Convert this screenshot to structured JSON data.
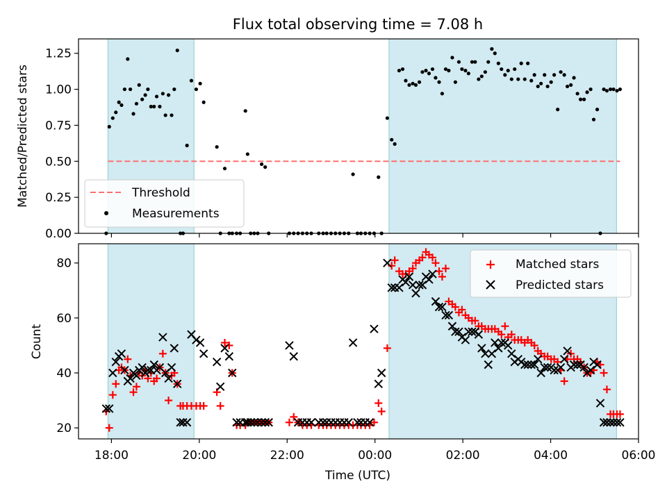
{
  "colors": {
    "shade": "#add8e6",
    "threshold": "#ff6e6e",
    "matched": "#ff0000",
    "predicted": "#000000",
    "measurement": "#000000"
  },
  "chart_data": [
    {
      "type": "scatter",
      "title": "Flux total observing time = 7.08 h",
      "xlabel": "",
      "ylabel": "Matched/Predicted stars",
      "xlim": [
        17.25,
        30.0
      ],
      "ylim": [
        0.0,
        1.35
      ],
      "yticks": [
        0.0,
        0.25,
        0.5,
        0.75,
        1.0,
        1.25
      ],
      "ytick_labels": [
        "0.00",
        "0.25",
        "0.50",
        "0.75",
        "1.00",
        "1.25"
      ],
      "shaded_intervals": [
        [
          17.92,
          19.88
        ],
        [
          24.32,
          29.5
        ]
      ],
      "threshold": {
        "name": "Threshold",
        "y": 0.5,
        "x_range": [
          17.92,
          29.58
        ]
      },
      "legend": {
        "position": "lower-left",
        "entries": [
          "Threshold",
          "Measurements"
        ]
      },
      "series": [
        {
          "name": "Measurements",
          "x": [
            17.88,
            17.95,
            18.03,
            18.1,
            18.17,
            18.23,
            18.3,
            18.37,
            18.43,
            18.5,
            18.57,
            18.63,
            18.7,
            18.77,
            18.83,
            18.9,
            18.97,
            19.03,
            19.1,
            19.17,
            19.23,
            19.3,
            19.37,
            19.43,
            19.5,
            19.57,
            19.63,
            19.72,
            19.82,
            19.93,
            20.02,
            20.1,
            20.4,
            20.48,
            20.58,
            20.68,
            20.75,
            20.85,
            20.93,
            21.05,
            21.1,
            21.17,
            21.25,
            21.33,
            21.42,
            21.5,
            21.58,
            22.05,
            22.15,
            22.25,
            22.35,
            22.45,
            22.55,
            22.72,
            22.82,
            22.9,
            23.0,
            23.1,
            23.2,
            23.3,
            23.4,
            23.5,
            23.6,
            23.68,
            23.78,
            23.88,
            23.98,
            24.08,
            24.15,
            24.28,
            24.38,
            24.45,
            24.55,
            24.63,
            24.7,
            24.78,
            24.86,
            24.93,
            25.01,
            25.08,
            25.16,
            25.23,
            25.31,
            25.38,
            25.46,
            25.53,
            25.61,
            25.68,
            25.76,
            25.83,
            25.91,
            25.98,
            26.06,
            26.13,
            26.21,
            26.28,
            26.36,
            26.43,
            26.51,
            26.58,
            26.66,
            26.73,
            26.81,
            26.88,
            26.96,
            27.03,
            27.11,
            27.18,
            27.26,
            27.33,
            27.41,
            27.48,
            27.56,
            27.63,
            27.71,
            27.78,
            27.86,
            27.93,
            28.01,
            28.08,
            28.16,
            28.23,
            28.31,
            28.38,
            28.46,
            28.53,
            28.61,
            28.68,
            28.76,
            28.83,
            28.91,
            28.98,
            29.06,
            29.13,
            29.21,
            29.28,
            29.36,
            29.43,
            29.51,
            29.58
          ],
          "y": [
            0.0,
            0.74,
            0.8,
            0.84,
            0.91,
            0.89,
            1.0,
            1.21,
            1.0,
            0.83,
            0.9,
            1.03,
            0.93,
            0.96,
            1.0,
            0.88,
            0.88,
            0.95,
            0.88,
            0.97,
            0.82,
            0.96,
            0.82,
            1.0,
            1.27,
            0.0,
            0.0,
            0.61,
            1.06,
            1.0,
            1.04,
            0.91,
            0.6,
            0.0,
            0.45,
            0.0,
            0.0,
            0.0,
            0.0,
            0.85,
            0.55,
            0.0,
            0.0,
            0.0,
            0.48,
            0.46,
            0.0,
            0.0,
            0.0,
            0.0,
            0.0,
            0.0,
            0.0,
            0.0,
            0.0,
            0.0,
            0.0,
            0.0,
            0.0,
            0.0,
            0.0,
            0.41,
            0.0,
            0.0,
            0.0,
            0.0,
            0.0,
            0.39,
            0.0,
            0.8,
            0.65,
            0.62,
            1.13,
            1.14,
            1.06,
            1.03,
            1.04,
            1.03,
            1.05,
            1.12,
            1.13,
            1.11,
            1.14,
            1.08,
            1.05,
            0.97,
            1.14,
            1.13,
            1.22,
            1.05,
            1.19,
            1.14,
            1.13,
            1.11,
            1.19,
            1.19,
            1.07,
            1.09,
            1.12,
            1.19,
            1.28,
            1.25,
            1.18,
            1.14,
            1.1,
            1.13,
            1.07,
            1.14,
            1.07,
            1.18,
            1.07,
            1.18,
            1.06,
            1.1,
            1.02,
            1.04,
            1.1,
            1.02,
            1.05,
            1.1,
            0.86,
            1.12,
            1.1,
            1.02,
            1.03,
            1.08,
            0.97,
            0.93,
            0.93,
            0.98,
            1.0,
            0.79,
            0.86,
            0.0,
            1.0,
            0.99,
            1.0,
            1.0,
            0.99,
            1.0
          ],
          "count_note": "Values estimated from the figure"
        }
      ]
    },
    {
      "type": "scatter",
      "title": "",
      "xlabel": "Time (UTC)",
      "ylabel": "Count",
      "xlim": [
        17.25,
        30.0
      ],
      "ylim": [
        16,
        87
      ],
      "yticks": [
        20,
        40,
        60,
        80
      ],
      "ytick_labels": [
        "20",
        "40",
        "60",
        "80"
      ],
      "xticks": [
        18,
        20,
        22,
        24,
        26,
        28,
        30
      ],
      "xtick_labels": [
        "18:00",
        "20:00",
        "22:00",
        "00:00",
        "02:00",
        "04:00",
        "06:00"
      ],
      "shaded_intervals": [
        [
          17.92,
          19.88
        ],
        [
          24.32,
          29.5
        ]
      ],
      "legend": {
        "position": "top-right",
        "entries": [
          "Matched stars",
          "Predicted stars"
        ]
      },
      "series": [
        {
          "name": "Matched stars",
          "marker": "plus",
          "x": [
            17.88,
            17.95,
            18.03,
            18.1,
            18.17,
            18.23,
            18.3,
            18.37,
            18.43,
            18.5,
            18.57,
            18.63,
            18.7,
            18.77,
            18.83,
            18.9,
            18.97,
            19.03,
            19.1,
            19.17,
            19.23,
            19.3,
            19.37,
            19.43,
            19.5,
            19.57,
            19.63,
            19.72,
            19.82,
            19.93,
            20.02,
            20.1,
            20.4,
            20.48,
            20.58,
            20.68,
            20.75,
            20.85,
            20.93,
            21.05,
            21.1,
            21.17,
            21.25,
            21.33,
            21.42,
            21.5,
            21.58,
            22.05,
            22.15,
            22.25,
            22.35,
            22.45,
            22.55,
            22.72,
            22.82,
            22.9,
            23.0,
            23.1,
            23.2,
            23.3,
            23.4,
            23.5,
            23.6,
            23.68,
            23.78,
            23.88,
            23.98,
            24.08,
            24.15,
            24.28,
            24.38,
            24.45,
            24.55,
            24.63,
            24.7,
            24.78,
            24.86,
            24.93,
            25.01,
            25.08,
            25.16,
            25.23,
            25.31,
            25.38,
            25.46,
            25.53,
            25.61,
            25.68,
            25.76,
            25.83,
            25.91,
            25.98,
            26.06,
            26.13,
            26.21,
            26.28,
            26.36,
            26.43,
            26.51,
            26.58,
            26.66,
            26.73,
            26.81,
            26.88,
            26.96,
            27.03,
            27.11,
            27.18,
            27.26,
            27.33,
            27.41,
            27.48,
            27.56,
            27.63,
            27.71,
            27.78,
            27.86,
            27.93,
            28.01,
            28.08,
            28.16,
            28.23,
            28.31,
            28.38,
            28.46,
            28.53,
            28.61,
            28.68,
            28.76,
            28.83,
            28.91,
            28.98,
            29.06,
            29.13,
            29.21,
            29.28,
            29.36,
            29.43,
            29.51,
            29.58
          ],
          "y": [
            26,
            20,
            32,
            36,
            41,
            42,
            41,
            45,
            39,
            33,
            35,
            40,
            39,
            41,
            38,
            40,
            37,
            38,
            42,
            47,
            40,
            30,
            39,
            40,
            36,
            28,
            28,
            28,
            28,
            28,
            28,
            28,
            33,
            28,
            51,
            50,
            40,
            21,
            21,
            21,
            22,
            22,
            22,
            22,
            22,
            22,
            22,
            22,
            24,
            22,
            21,
            21,
            21,
            21,
            21,
            21,
            21,
            21,
            21,
            21,
            21,
            21,
            21,
            21,
            21,
            21,
            22,
            29,
            26,
            49,
            79,
            81,
            77,
            76,
            76,
            77,
            78,
            80,
            81,
            82,
            84,
            83,
            82,
            80,
            77,
            75,
            78,
            66,
            65,
            64,
            62,
            63,
            61,
            60,
            59,
            59,
            57,
            57,
            56,
            56,
            56,
            56,
            55,
            54,
            57,
            53,
            54,
            52,
            52,
            52,
            51,
            52,
            51,
            50,
            48,
            47,
            46,
            46,
            45,
            45,
            44,
            41,
            37,
            45,
            47,
            45,
            45,
            44,
            42,
            40,
            40,
            41,
            44,
            43,
            40,
            34,
            25,
            25,
            25,
            25
          ]
        },
        {
          "name": "Predicted stars",
          "marker": "x",
          "x": [
            17.88,
            17.95,
            18.03,
            18.1,
            18.17,
            18.23,
            18.3,
            18.37,
            18.43,
            18.5,
            18.57,
            18.63,
            18.7,
            18.77,
            18.83,
            18.9,
            18.97,
            19.03,
            19.1,
            19.17,
            19.23,
            19.3,
            19.37,
            19.43,
            19.5,
            19.57,
            19.63,
            19.72,
            19.82,
            19.93,
            20.02,
            20.1,
            20.4,
            20.48,
            20.58,
            20.68,
            20.75,
            20.85,
            20.93,
            21.05,
            21.1,
            21.17,
            21.25,
            21.33,
            21.42,
            21.5,
            21.58,
            22.05,
            22.15,
            22.25,
            22.35,
            22.45,
            22.55,
            22.72,
            22.82,
            22.9,
            23.0,
            23.1,
            23.2,
            23.3,
            23.4,
            23.5,
            23.6,
            23.68,
            23.78,
            23.88,
            23.98,
            24.08,
            24.15,
            24.28,
            24.38,
            24.45,
            24.55,
            24.63,
            24.7,
            24.78,
            24.86,
            24.93,
            25.01,
            25.08,
            25.16,
            25.23,
            25.31,
            25.38,
            25.46,
            25.53,
            25.61,
            25.68,
            25.76,
            25.83,
            25.91,
            25.98,
            26.06,
            26.13,
            26.21,
            26.28,
            26.36,
            26.43,
            26.51,
            26.58,
            26.66,
            26.73,
            26.81,
            26.88,
            26.96,
            27.03,
            27.11,
            27.18,
            27.26,
            27.33,
            27.41,
            27.48,
            27.56,
            27.63,
            27.71,
            27.78,
            27.86,
            27.93,
            28.01,
            28.08,
            28.16,
            28.23,
            28.31,
            28.38,
            28.46,
            28.53,
            28.61,
            28.68,
            28.76,
            28.83,
            28.91,
            28.98,
            29.06,
            29.13,
            29.21,
            29.28,
            29.36,
            29.43,
            29.51,
            29.58
          ],
          "y": [
            27,
            27,
            40,
            44,
            46,
            47,
            41,
            37,
            38,
            40,
            39,
            41,
            42,
            40,
            41,
            41,
            43,
            41,
            42,
            53,
            40,
            38,
            42,
            49,
            36,
            22,
            22,
            22,
            54,
            52,
            51,
            47,
            44,
            35,
            49,
            46,
            40,
            22,
            22,
            22,
            22,
            22,
            22,
            22,
            22,
            22,
            22,
            50,
            46,
            22,
            22,
            22,
            22,
            22,
            22,
            22,
            22,
            22,
            22,
            22,
            22,
            51,
            22,
            22,
            22,
            22,
            56,
            36,
            40,
            80,
            71,
            71,
            71,
            74,
            73,
            75,
            72,
            69,
            72,
            72,
            75,
            74,
            76,
            66,
            64,
            64,
            61,
            61,
            57,
            55,
            55,
            53,
            52,
            55,
            55,
            55,
            54,
            49,
            47,
            43,
            47,
            51,
            49,
            51,
            51,
            50,
            47,
            44,
            45,
            44,
            43,
            43,
            43,
            43,
            45,
            40,
            42,
            42,
            42,
            41,
            41,
            42,
            45,
            48,
            42,
            43,
            43,
            43,
            42,
            40,
            41,
            44,
            43,
            29,
            22,
            22,
            22,
            22,
            22,
            22
          ]
        }
      ]
    }
  ]
}
